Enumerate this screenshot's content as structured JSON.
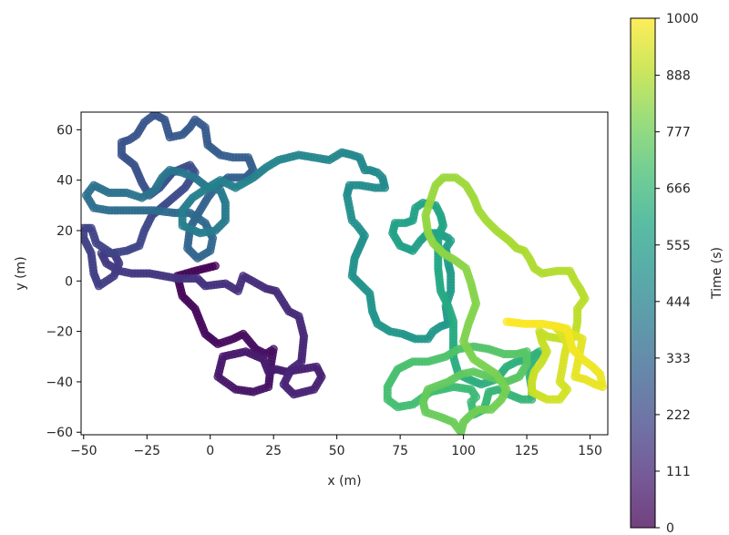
{
  "chart_data": {
    "type": "scatter",
    "title": "",
    "xlabel": "x (m)",
    "ylabel": "y (m)",
    "colorbar_label": "Time (s)",
    "xlim": [
      -51,
      157
    ],
    "ylim": [
      -61,
      67
    ],
    "clim": [
      0,
      1000
    ],
    "xticks": [
      -50,
      -25,
      0,
      25,
      50,
      75,
      100,
      125,
      150
    ],
    "xtick_labels": [
      "−50",
      "−25",
      "0",
      "25",
      "50",
      "75",
      "100",
      "125",
      "150"
    ],
    "yticks": [
      -60,
      -40,
      -20,
      0,
      20,
      40,
      60
    ],
    "ytick_labels": [
      "−60",
      "−40",
      "−20",
      "0",
      "20",
      "40",
      "60"
    ],
    "cticks": [
      0,
      111,
      222,
      333,
      444,
      555,
      666,
      777,
      888,
      1000
    ],
    "ctick_labels": [
      "0",
      "111",
      "222",
      "333",
      "444",
      "555",
      "666",
      "777",
      "888",
      "1000"
    ],
    "colormap": "viridis",
    "grid": false,
    "marker_alpha": 0.75,
    "path": [
      [
        2,
        6
      ],
      [
        -6,
        4
      ],
      [
        -13,
        2
      ],
      [
        -11,
        -6
      ],
      [
        -6,
        -11
      ],
      [
        -2,
        -21
      ],
      [
        3,
        -25
      ],
      [
        9,
        -23
      ],
      [
        13,
        -21
      ],
      [
        18,
        -27
      ],
      [
        22,
        -29
      ],
      [
        25,
        -27
      ],
      [
        24,
        -33
      ],
      [
        23,
        -42
      ],
      [
        17,
        -44
      ],
      [
        10,
        -43
      ],
      [
        3,
        -38
      ],
      [
        5,
        -30
      ],
      [
        14,
        -28
      ],
      [
        21,
        -31
      ],
      [
        23,
        -36
      ],
      [
        26,
        -35
      ],
      [
        30,
        -36
      ],
      [
        36,
        -35
      ],
      [
        42,
        -34
      ],
      [
        44,
        -38
      ],
      [
        41,
        -43
      ],
      [
        33,
        -45
      ],
      [
        29,
        -41
      ],
      [
        32,
        -35
      ],
      [
        36,
        -32
      ],
      [
        37,
        -22
      ],
      [
        35,
        -14
      ],
      [
        31,
        -12
      ],
      [
        26,
        -4
      ],
      [
        22,
        -3
      ],
      [
        13,
        2
      ],
      [
        11,
        -4
      ],
      [
        6,
        -1
      ],
      [
        -2,
        -2
      ],
      [
        -5,
        1
      ],
      [
        -13,
        1
      ],
      [
        -24,
        3
      ],
      [
        -31,
        3
      ],
      [
        -36,
        4
      ],
      [
        -41,
        7
      ],
      [
        -43,
        11
      ],
      [
        -38,
        11
      ],
      [
        -36,
        7
      ],
      [
        -38,
        2
      ],
      [
        -41,
        0
      ],
      [
        -44,
        -2
      ],
      [
        -46,
        3
      ],
      [
        -47,
        11
      ],
      [
        -50,
        17
      ],
      [
        -50,
        21
      ],
      [
        -47,
        21
      ],
      [
        -45,
        15
      ],
      [
        -39,
        11
      ],
      [
        -33,
        12
      ],
      [
        -28,
        14
      ],
      [
        -26,
        20
      ],
      [
        -23,
        26
      ],
      [
        -17,
        31
      ],
      [
        -10,
        37
      ],
      [
        -6,
        43
      ],
      [
        -8,
        46
      ],
      [
        -15,
        43
      ],
      [
        -20,
        37
      ],
      [
        -24,
        34
      ],
      [
        -27,
        39
      ],
      [
        -30,
        46
      ],
      [
        -35,
        50
      ],
      [
        -35,
        55
      ],
      [
        -32,
        56
      ],
      [
        -29,
        58
      ],
      [
        -26,
        63
      ],
      [
        -22,
        66
      ],
      [
        -18,
        64
      ],
      [
        -16,
        57
      ],
      [
        -11,
        58
      ],
      [
        -8,
        61
      ],
      [
        -6,
        64
      ],
      [
        -2,
        61
      ],
      [
        -1,
        54
      ],
      [
        4,
        50
      ],
      [
        9,
        49
      ],
      [
        15,
        49
      ],
      [
        17,
        44
      ],
      [
        14,
        41
      ],
      [
        7,
        41
      ],
      [
        2,
        37
      ],
      [
        -1,
        33
      ],
      [
        -4,
        28
      ],
      [
        -8,
        21
      ],
      [
        -9,
        13
      ],
      [
        -5,
        9
      ],
      [
        0,
        12
      ],
      [
        1,
        17
      ],
      [
        -2,
        23
      ],
      [
        -8,
        27
      ],
      [
        -14,
        27
      ],
      [
        -22,
        28
      ],
      [
        -32,
        28
      ],
      [
        -40,
        28
      ],
      [
        -46,
        29
      ],
      [
        -49,
        34
      ],
      [
        -46,
        38
      ],
      [
        -40,
        35
      ],
      [
        -33,
        35
      ],
      [
        -27,
        33
      ],
      [
        -22,
        36
      ],
      [
        -19,
        41
      ],
      [
        -16,
        44
      ],
      [
        -11,
        43
      ],
      [
        -6,
        41
      ],
      [
        -1,
        37
      ],
      [
        4,
        36
      ],
      [
        6,
        31
      ],
      [
        6,
        24
      ],
      [
        2,
        20
      ],
      [
        -4,
        19
      ],
      [
        -11,
        22
      ],
      [
        -11,
        28
      ],
      [
        -7,
        33
      ],
      [
        -1,
        37
      ],
      [
        4,
        40
      ],
      [
        10,
        37
      ],
      [
        17,
        41
      ],
      [
        22,
        45
      ],
      [
        27,
        48
      ],
      [
        35,
        50
      ],
      [
        41,
        49
      ],
      [
        47,
        48
      ],
      [
        52,
        51
      ],
      [
        56,
        50
      ],
      [
        59,
        49
      ],
      [
        61,
        44
      ],
      [
        63,
        44
      ],
      [
        66,
        43
      ],
      [
        68,
        41
      ],
      [
        69,
        37
      ],
      [
        65,
        37
      ],
      [
        59,
        38
      ],
      [
        55,
        38
      ],
      [
        54,
        34
      ],
      [
        55,
        29
      ],
      [
        56,
        24
      ],
      [
        58,
        22
      ],
      [
        61,
        18
      ],
      [
        57,
        9
      ],
      [
        56,
        2
      ],
      [
        59,
        -1
      ],
      [
        63,
        -5
      ],
      [
        64,
        -12
      ],
      [
        66,
        -17
      ],
      [
        71,
        -20
      ],
      [
        76,
        -21
      ],
      [
        81,
        -23
      ],
      [
        86,
        -23
      ],
      [
        88,
        -20
      ],
      [
        91,
        -18
      ],
      [
        94,
        -17
      ],
      [
        93,
        -10
      ],
      [
        95,
        -4
      ],
      [
        95,
        3
      ],
      [
        94,
        7
      ],
      [
        93,
        13
      ],
      [
        95,
        16
      ],
      [
        94,
        17
      ],
      [
        90,
        19
      ],
      [
        86,
        19
      ],
      [
        83,
        16
      ],
      [
        80,
        12
      ],
      [
        75,
        14
      ],
      [
        72,
        19
      ],
      [
        73,
        23
      ],
      [
        77,
        23
      ],
      [
        80,
        24
      ],
      [
        81,
        29
      ],
      [
        84,
        31
      ],
      [
        89,
        30
      ],
      [
        91,
        26
      ],
      [
        92,
        22
      ],
      [
        90,
        18
      ],
      [
        90,
        12
      ],
      [
        90,
        5
      ],
      [
        91,
        -4
      ],
      [
        94,
        -10
      ],
      [
        96,
        -16
      ],
      [
        96,
        -22
      ],
      [
        96,
        -30
      ],
      [
        98,
        -37
      ],
      [
        102,
        -39
      ],
      [
        107,
        -41
      ],
      [
        113,
        -39
      ],
      [
        117,
        -34
      ],
      [
        121,
        -32
      ],
      [
        125,
        -31
      ],
      [
        130,
        -28
      ],
      [
        127,
        -32
      ],
      [
        126,
        -37
      ],
      [
        127,
        -43
      ],
      [
        127,
        -47
      ],
      [
        123,
        -47
      ],
      [
        118,
        -45
      ],
      [
        114,
        -43
      ],
      [
        110,
        -44
      ],
      [
        109,
        -48
      ],
      [
        108,
        -51
      ],
      [
        104,
        -53
      ],
      [
        103,
        -48
      ],
      [
        105,
        -46
      ],
      [
        103,
        -43
      ],
      [
        96,
        -42
      ],
      [
        87,
        -44
      ],
      [
        80,
        -49
      ],
      [
        74,
        -50
      ],
      [
        70,
        -47
      ],
      [
        70,
        -42
      ],
      [
        74,
        -35
      ],
      [
        80,
        -32
      ],
      [
        86,
        -32
      ],
      [
        93,
        -30
      ],
      [
        98,
        -27
      ],
      [
        104,
        -26
      ],
      [
        110,
        -27
      ],
      [
        116,
        -29
      ],
      [
        121,
        -29
      ],
      [
        125,
        -28
      ],
      [
        125,
        -33
      ],
      [
        122,
        -38
      ],
      [
        117,
        -40
      ],
      [
        110,
        -38
      ],
      [
        104,
        -36
      ],
      [
        99,
        -37
      ],
      [
        94,
        -40
      ],
      [
        86,
        -43
      ],
      [
        84,
        -48
      ],
      [
        85,
        -52
      ],
      [
        91,
        -54
      ],
      [
        96,
        -56
      ],
      [
        99,
        -60
      ],
      [
        100,
        -56
      ],
      [
        103,
        -53
      ],
      [
        106,
        -51
      ],
      [
        111,
        -51
      ],
      [
        115,
        -47
      ],
      [
        117,
        -43
      ],
      [
        113,
        -37
      ],
      [
        104,
        -31
      ],
      [
        100,
        -24
      ],
      [
        102,
        -17
      ],
      [
        105,
        -9
      ],
      [
        103,
        -1
      ],
      [
        101,
        5
      ],
      [
        97,
        8
      ],
      [
        92,
        11
      ],
      [
        88,
        15
      ],
      [
        86,
        19
      ],
      [
        85,
        26
      ],
      [
        87,
        32
      ],
      [
        89,
        38
      ],
      [
        92,
        41
      ],
      [
        97,
        41
      ],
      [
        101,
        38
      ],
      [
        104,
        33
      ],
      [
        106,
        28
      ],
      [
        109,
        24
      ],
      [
        113,
        20
      ],
      [
        118,
        16
      ],
      [
        121,
        13
      ],
      [
        124,
        12
      ],
      [
        126,
        9
      ],
      [
        128,
        5
      ],
      [
        131,
        3
      ],
      [
        137,
        4
      ],
      [
        142,
        4
      ],
      [
        144,
        0
      ],
      [
        146,
        -3
      ],
      [
        148,
        -7
      ],
      [
        145,
        -11
      ],
      [
        145,
        -16
      ],
      [
        144,
        -22
      ],
      [
        139,
        -23
      ],
      [
        133,
        -22
      ],
      [
        130,
        -20
      ],
      [
        131,
        -24
      ],
      [
        133,
        -28
      ],
      [
        131,
        -32
      ],
      [
        128,
        -36
      ],
      [
        127,
        -40
      ],
      [
        127,
        -44
      ],
      [
        133,
        -47
      ],
      [
        138,
        -47
      ],
      [
        141,
        -43
      ],
      [
        138,
        -40
      ],
      [
        139,
        -35
      ],
      [
        140,
        -29
      ],
      [
        141,
        -25
      ],
      [
        138,
        -20
      ],
      [
        136,
        -18
      ],
      [
        139,
        -19
      ],
      [
        143,
        -21
      ],
      [
        147,
        -23
      ],
      [
        146,
        -28
      ],
      [
        145,
        -33
      ],
      [
        144,
        -38
      ],
      [
        148,
        -39
      ],
      [
        152,
        -41
      ],
      [
        155,
        -42
      ],
      [
        154,
        -37
      ],
      [
        151,
        -34
      ],
      [
        147,
        -31
      ],
      [
        143,
        -27
      ],
      [
        142,
        -23
      ],
      [
        141,
        -19
      ],
      [
        137,
        -18
      ],
      [
        131,
        -17
      ],
      [
        124,
        -17
      ],
      [
        116,
        -16
      ]
    ]
  }
}
